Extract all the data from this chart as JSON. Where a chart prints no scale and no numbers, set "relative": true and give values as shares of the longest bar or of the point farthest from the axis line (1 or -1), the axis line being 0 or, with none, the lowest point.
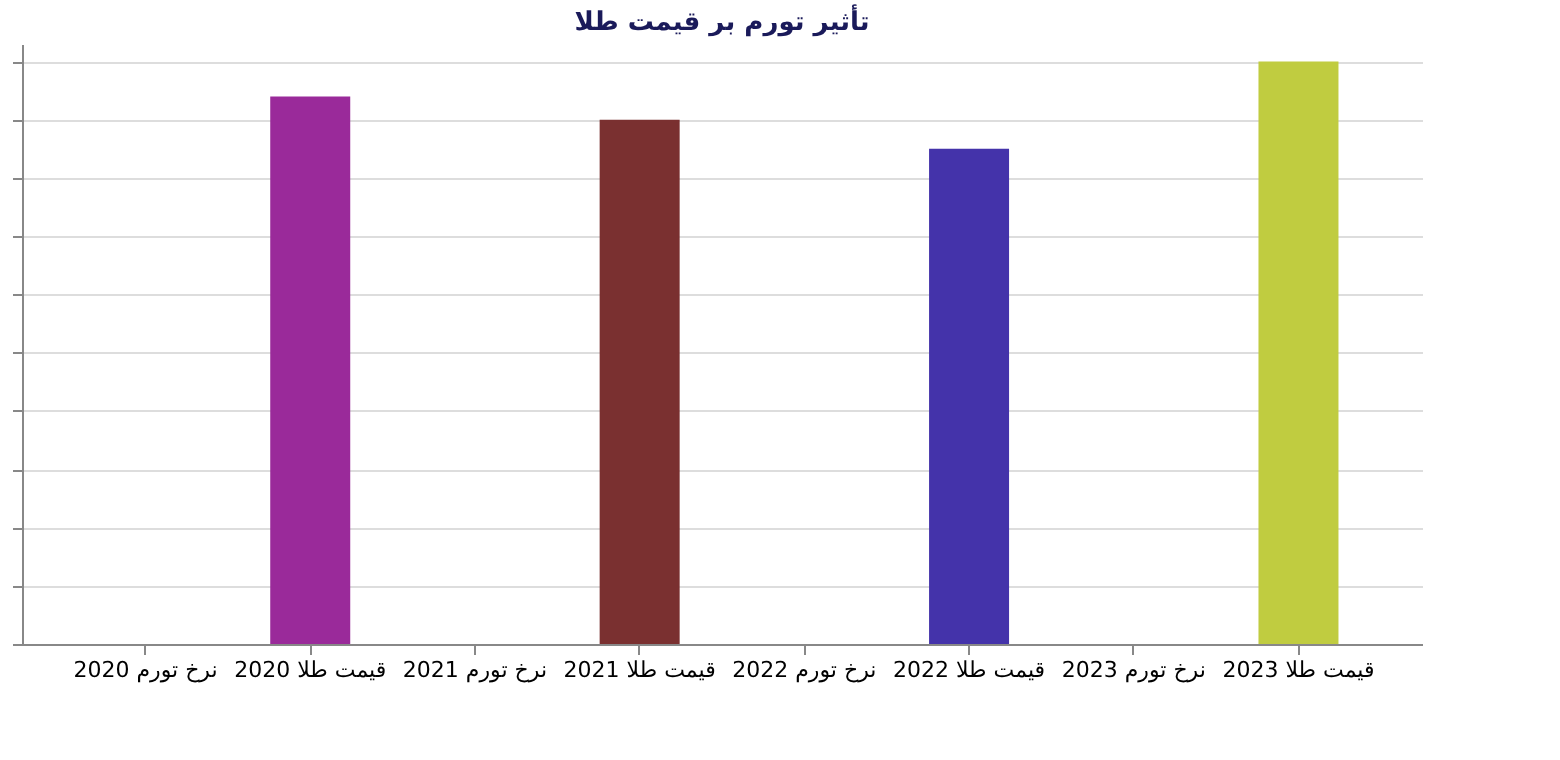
{
  "chart_data": {
    "type": "bar",
    "title": "تأثیر تورم بر قیمت طلا",
    "relative": true,
    "grid": "y",
    "categories": [
      "نرخ تورم 2020",
      "قیمت طلا 2020",
      "نرخ تورم 2021",
      "قیمت طلا 2021",
      "نرخ تورم 2022",
      "قیمت طلا 2022",
      "نرخ تورم 2023",
      "قیمت طلا 2023"
    ],
    "values": [
      0,
      0.94,
      0,
      0.9,
      0,
      0.85,
      0,
      1
    ],
    "colors": [
      "#5a9a5a",
      "#9a2a9a",
      "#66ff33",
      "#7a3030",
      "#8a6070",
      "#4433aa",
      "#3a9a6a",
      "#c0cc40"
    ]
  }
}
